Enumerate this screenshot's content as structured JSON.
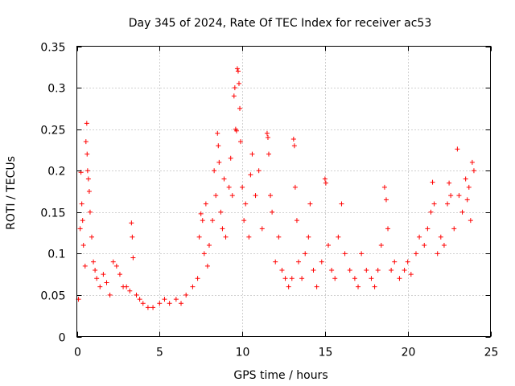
{
  "chart_data": {
    "type": "scatter",
    "title": "Day 345 of 2024, Rate Of TEC Index for receiver ac53",
    "xlabel": "GPS time / hours",
    "ylabel": "ROTI / TECUs",
    "xlim": [
      0,
      25
    ],
    "ylim": [
      0,
      0.35
    ],
    "xticks": [
      0,
      5,
      10,
      15,
      20,
      25
    ],
    "xtick_labels": [
      "0",
      "5",
      "10",
      "15",
      "20",
      "25"
    ],
    "yticks": [
      0,
      0.05,
      0.1,
      0.15,
      0.2,
      0.25,
      0.3,
      0.35
    ],
    "ytick_labels": [
      "0",
      "0.05",
      "0.1",
      "0.15",
      "0.2",
      "0.25",
      "0.3",
      "0.35"
    ],
    "grid": true,
    "marker": "+",
    "color": "#ff0000",
    "series": [
      {
        "name": "ROTI",
        "points": [
          [
            0.1,
            0.045
          ],
          [
            0.2,
            0.13
          ],
          [
            0.25,
            0.198
          ],
          [
            0.3,
            0.16
          ],
          [
            0.35,
            0.14
          ],
          [
            0.4,
            0.11
          ],
          [
            0.5,
            0.085
          ],
          [
            0.55,
            0.235
          ],
          [
            0.6,
            0.257
          ],
          [
            0.62,
            0.22
          ],
          [
            0.65,
            0.2
          ],
          [
            0.7,
            0.19
          ],
          [
            0.75,
            0.175
          ],
          [
            0.8,
            0.15
          ],
          [
            0.9,
            0.12
          ],
          [
            1.0,
            0.09
          ],
          [
            1.1,
            0.08
          ],
          [
            1.2,
            0.07
          ],
          [
            1.4,
            0.06
          ],
          [
            1.6,
            0.075
          ],
          [
            1.8,
            0.065
          ],
          [
            2.0,
            0.05
          ],
          [
            2.2,
            0.09
          ],
          [
            2.4,
            0.085
          ],
          [
            2.6,
            0.075
          ],
          [
            2.8,
            0.06
          ],
          [
            3.0,
            0.06
          ],
          [
            3.2,
            0.055
          ],
          [
            3.3,
            0.137
          ],
          [
            3.35,
            0.12
          ],
          [
            3.4,
            0.095
          ],
          [
            3.6,
            0.05
          ],
          [
            3.8,
            0.045
          ],
          [
            4.0,
            0.04
          ],
          [
            4.3,
            0.035
          ],
          [
            4.6,
            0.035
          ],
          [
            5.0,
            0.04
          ],
          [
            5.3,
            0.045
          ],
          [
            5.6,
            0.04
          ],
          [
            6.0,
            0.045
          ],
          [
            6.3,
            0.04
          ],
          [
            6.6,
            0.05
          ],
          [
            7.0,
            0.06
          ],
          [
            7.3,
            0.07
          ],
          [
            7.4,
            0.12
          ],
          [
            7.5,
            0.148
          ],
          [
            7.6,
            0.14
          ],
          [
            7.7,
            0.1
          ],
          [
            7.8,
            0.16
          ],
          [
            7.9,
            0.085
          ],
          [
            8.0,
            0.11
          ],
          [
            8.2,
            0.14
          ],
          [
            8.3,
            0.2
          ],
          [
            8.4,
            0.17
          ],
          [
            8.5,
            0.245
          ],
          [
            8.55,
            0.23
          ],
          [
            8.6,
            0.21
          ],
          [
            8.7,
            0.15
          ],
          [
            8.8,
            0.13
          ],
          [
            8.9,
            0.19
          ],
          [
            9.0,
            0.12
          ],
          [
            9.2,
            0.18
          ],
          [
            9.3,
            0.215
          ],
          [
            9.4,
            0.17
          ],
          [
            9.5,
            0.29
          ],
          [
            9.55,
            0.3
          ],
          [
            9.6,
            0.25
          ],
          [
            9.65,
            0.248
          ],
          [
            9.7,
            0.323
          ],
          [
            9.75,
            0.32
          ],
          [
            9.8,
            0.305
          ],
          [
            9.85,
            0.275
          ],
          [
            9.9,
            0.235
          ],
          [
            10.0,
            0.18
          ],
          [
            10.1,
            0.14
          ],
          [
            10.2,
            0.16
          ],
          [
            10.4,
            0.12
          ],
          [
            10.5,
            0.195
          ],
          [
            10.6,
            0.22
          ],
          [
            10.8,
            0.17
          ],
          [
            11.0,
            0.2
          ],
          [
            11.2,
            0.13
          ],
          [
            11.5,
            0.245
          ],
          [
            11.55,
            0.24
          ],
          [
            11.6,
            0.22
          ],
          [
            11.7,
            0.17
          ],
          [
            11.8,
            0.15
          ],
          [
            12.0,
            0.09
          ],
          [
            12.2,
            0.12
          ],
          [
            12.4,
            0.08
          ],
          [
            12.6,
            0.07
          ],
          [
            12.8,
            0.06
          ],
          [
            13.0,
            0.07
          ],
          [
            13.1,
            0.238
          ],
          [
            13.15,
            0.23
          ],
          [
            13.2,
            0.18
          ],
          [
            13.3,
            0.14
          ],
          [
            13.4,
            0.09
          ],
          [
            13.6,
            0.07
          ],
          [
            13.8,
            0.1
          ],
          [
            14.0,
            0.12
          ],
          [
            14.1,
            0.16
          ],
          [
            14.3,
            0.08
          ],
          [
            14.5,
            0.06
          ],
          [
            14.8,
            0.09
          ],
          [
            15.0,
            0.19
          ],
          [
            15.05,
            0.185
          ],
          [
            15.2,
            0.11
          ],
          [
            15.4,
            0.08
          ],
          [
            15.6,
            0.07
          ],
          [
            15.8,
            0.12
          ],
          [
            16.0,
            0.16
          ],
          [
            16.2,
            0.1
          ],
          [
            16.5,
            0.08
          ],
          [
            16.8,
            0.07
          ],
          [
            17.0,
            0.06
          ],
          [
            17.2,
            0.1
          ],
          [
            17.5,
            0.08
          ],
          [
            17.8,
            0.07
          ],
          [
            18.0,
            0.06
          ],
          [
            18.2,
            0.08
          ],
          [
            18.4,
            0.11
          ],
          [
            18.6,
            0.18
          ],
          [
            18.7,
            0.165
          ],
          [
            18.8,
            0.13
          ],
          [
            19.0,
            0.08
          ],
          [
            19.2,
            0.09
          ],
          [
            19.5,
            0.07
          ],
          [
            19.8,
            0.08
          ],
          [
            20.0,
            0.09
          ],
          [
            20.2,
            0.075
          ],
          [
            20.5,
            0.1
          ],
          [
            20.7,
            0.12
          ],
          [
            21.0,
            0.11
          ],
          [
            21.2,
            0.13
          ],
          [
            21.4,
            0.15
          ],
          [
            21.5,
            0.186
          ],
          [
            21.6,
            0.16
          ],
          [
            21.8,
            0.1
          ],
          [
            22.0,
            0.12
          ],
          [
            22.2,
            0.11
          ],
          [
            22.4,
            0.16
          ],
          [
            22.5,
            0.185
          ],
          [
            22.6,
            0.17
          ],
          [
            22.8,
            0.13
          ],
          [
            23.0,
            0.226
          ],
          [
            23.1,
            0.17
          ],
          [
            23.3,
            0.15
          ],
          [
            23.5,
            0.19
          ],
          [
            23.6,
            0.165
          ],
          [
            23.7,
            0.18
          ],
          [
            23.8,
            0.14
          ],
          [
            23.9,
            0.21
          ],
          [
            24.0,
            0.2
          ]
        ]
      }
    ]
  }
}
